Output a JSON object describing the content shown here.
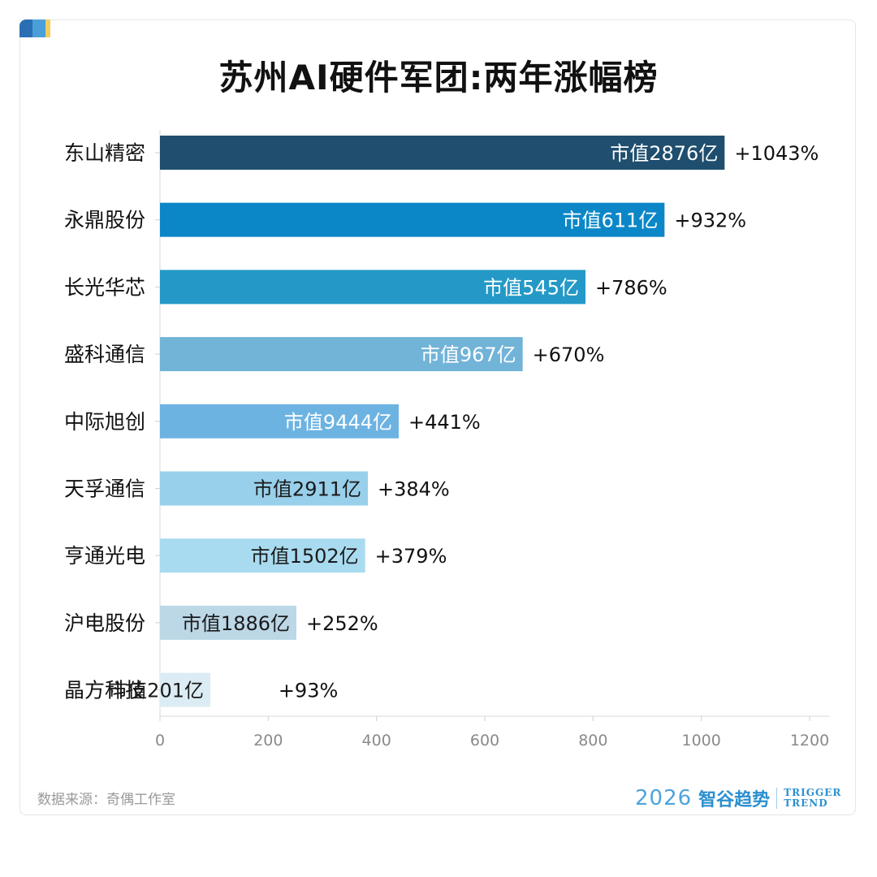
{
  "header": {
    "title": "苏州AI硬件军团:两年涨幅榜"
  },
  "footer": {
    "source": "数据来源：奇偶工作室",
    "brand_year": "2026",
    "brand_name": "智谷趋势",
    "brand_en_line1": "TRIGGER",
    "brand_en_line2": "TREND"
  },
  "chart_data": {
    "type": "bar",
    "orientation": "horizontal",
    "title": "苏州AI硬件军团:两年涨幅榜",
    "xlabel": "",
    "ylabel": "",
    "xlim": [
      0,
      1200
    ],
    "xticks": [
      0,
      200,
      400,
      600,
      800,
      1000,
      1200
    ],
    "grid": false,
    "categories": [
      "东山精密",
      "永鼎股份",
      "长光华芯",
      "盛科通信",
      "中际旭创",
      "天孚通信",
      "亨通光电",
      "沪电股份",
      "晶方科技"
    ],
    "values": [
      1043,
      932,
      786,
      670,
      441,
      384,
      379,
      252,
      93
    ],
    "value_labels": [
      "+1043%",
      "+932%",
      "+786%",
      "+670%",
      "+441%",
      "+384%",
      "+379%",
      "+252%",
      "+93%"
    ],
    "bar_labels": [
      "市值2876亿",
      "市值611亿",
      "市值545亿",
      "市值967亿",
      "市值9444亿",
      "市值2911亿",
      "市值1502亿",
      "市值1886亿",
      "市值201亿"
    ],
    "colors": [
      "#1f4e6e",
      "#0b87c8",
      "#2499c7",
      "#72b3d8",
      "#6db3e2",
      "#98cfea",
      "#a9dbf0",
      "#bcd7e6",
      "#dcecf4"
    ]
  }
}
